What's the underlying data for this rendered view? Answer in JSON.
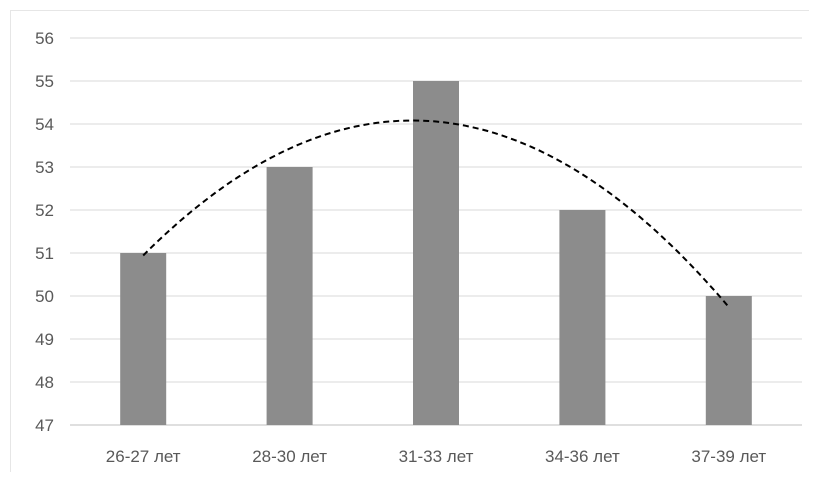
{
  "chart_data": {
    "type": "bar",
    "categories": [
      "26-27 лет",
      "28-30 лет",
      "31-33 лет",
      "34-36 лет",
      "37-39 лет"
    ],
    "values": [
      51,
      53,
      55,
      52,
      50
    ],
    "ylim": [
      47,
      56
    ],
    "yticks": [
      47,
      48,
      49,
      50,
      51,
      52,
      53,
      54,
      55,
      56
    ],
    "grid": true,
    "trendline": {
      "type": "polynomial",
      "order": 2,
      "style": "dashed",
      "color": "#000000"
    },
    "colors": {
      "bar": "#8c8c8c",
      "grid": "#d9d9d9",
      "axis": "#bfbfbf",
      "label": "#595959"
    }
  }
}
